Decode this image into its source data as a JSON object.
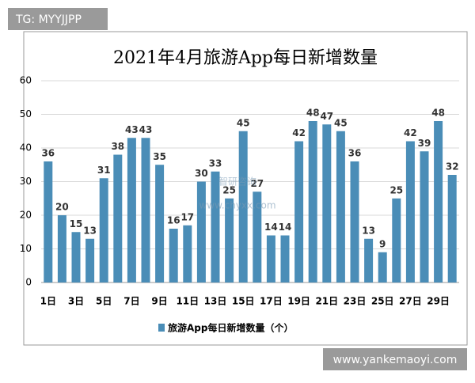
{
  "chart_data": {
    "type": "bar",
    "title": "2021年4月旅游App每日新增数量",
    "categories": [
      "1日",
      null,
      "3日",
      null,
      "5日",
      null,
      "7日",
      null,
      "9日",
      null,
      "11日",
      null,
      "13日",
      null,
      "15日",
      null,
      "17日",
      null,
      "19日",
      null,
      "21日",
      null,
      "23日",
      null,
      "25日",
      null,
      "27日",
      null,
      "29日",
      null
    ],
    "series": [
      {
        "name": "旅游App每日新增数量（个）",
        "color": "#4a8db7",
        "values": [
          36,
          20,
          15,
          13,
          31,
          38,
          43,
          43,
          35,
          16,
          17,
          30,
          33,
          25,
          45,
          27,
          14,
          14,
          42,
          48,
          47,
          45,
          36,
          13,
          9,
          25,
          42,
          39,
          48,
          32
        ]
      }
    ],
    "ylim": [
      0,
      60
    ],
    "yticks": [
      0,
      10,
      20,
      30,
      40,
      50,
      60
    ],
    "grid": true
  },
  "overlays": {
    "tag": "TG: MYYJJPP",
    "site": "www.yankemaoyi.com",
    "watermark": "智研咨询",
    "watermark_url": "www.chyxx.com"
  }
}
